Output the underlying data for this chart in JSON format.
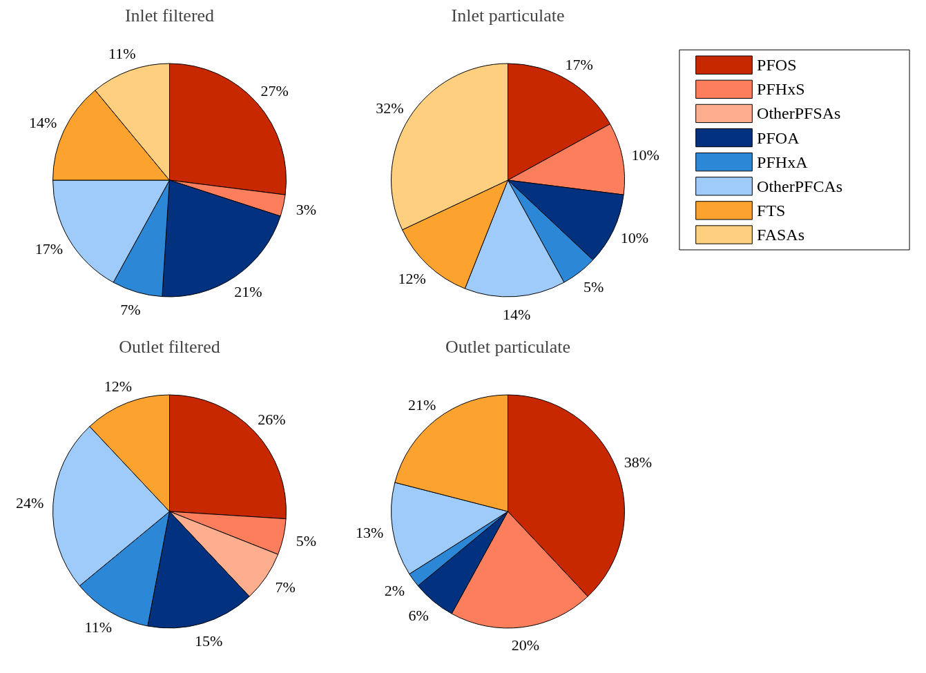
{
  "chart_data": [
    {
      "type": "pie",
      "title": "Inlet filtered",
      "legend": "right",
      "categories": [
        "PFOS",
        "PFHxS",
        "OtherPFSAs",
        "PFOA",
        "PFHxA",
        "OtherPFCAs",
        "FTS",
        "FASAs"
      ],
      "colors": [
        "#c82800",
        "#fc7e5c",
        "#fdae8e",
        "#02317f",
        "#2c87d6",
        "#9ecbfa",
        "#fca22f",
        "#fdcf7e"
      ],
      "values": [
        27,
        3,
        null,
        21,
        7,
        17,
        14,
        11
      ],
      "value_labels": [
        "27%",
        "3%",
        null,
        "21%",
        "7%",
        "17%",
        "14%",
        "11%"
      ]
    },
    {
      "type": "pie",
      "title": "Inlet particulate",
      "categories": [
        null,
        null,
        null,
        null,
        null,
        null,
        null,
        null
      ],
      "colors": [
        "#c82800",
        "#fc7e5c",
        "#fdae8e",
        "#02317f",
        "#2c87d6",
        "#9ecbfa",
        "#fca22f",
        "#fdcf7e"
      ],
      "values": [
        17,
        10,
        null,
        10,
        5,
        14,
        12,
        32
      ],
      "value_labels": [
        "17%",
        "10%",
        null,
        "10%",
        "5%",
        "14%",
        "12%",
        "32%"
      ]
    },
    {
      "type": "pie",
      "title": "Outlet filtered",
      "categories": [
        null,
        null,
        null,
        null,
        null,
        null,
        null,
        null
      ],
      "colors": [
        "#c82800",
        "#fc7e5c",
        "#fdae8e",
        "#02317f",
        "#2c87d6",
        "#9ecbfa",
        "#fca22f",
        "#fdcf7e"
      ],
      "values": [
        26,
        5,
        7,
        15,
        11,
        24,
        12,
        null
      ],
      "value_labels": [
        "26%",
        "5%",
        "7%",
        "15%",
        "11%",
        "24%",
        "12%",
        null
      ]
    },
    {
      "type": "pie",
      "title": "Outlet particulate",
      "categories": [
        null,
        null,
        null,
        null,
        null,
        null,
        null,
        null
      ],
      "colors": [
        "#c82800",
        "#fc7e5c",
        "#fdae8e",
        "#02317f",
        "#2c87d6",
        "#9ecbfa",
        "#fca22f",
        "#fdcf7e"
      ],
      "values": [
        38,
        20,
        null,
        6,
        2,
        13,
        21,
        null
      ],
      "value_labels": [
        "38%",
        "20%",
        null,
        "6%",
        "2%",
        "13%",
        "21%",
        null
      ]
    }
  ]
}
